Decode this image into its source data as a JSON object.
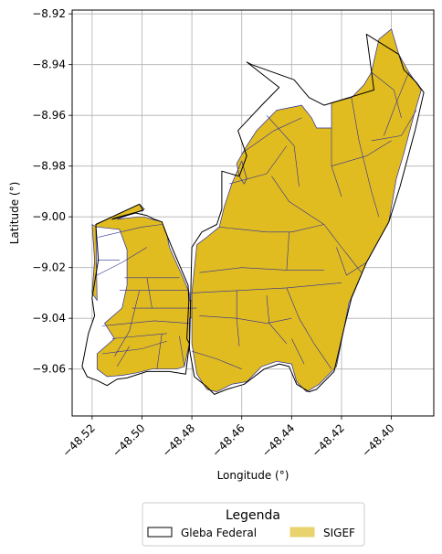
{
  "chart_data": {
    "type": "map",
    "xlabel": "Longitude (°)",
    "ylabel": "Latitude (°)",
    "xlim": [
      -48.528,
      -48.383
    ],
    "ylim": [
      -9.0785,
      -8.9185
    ],
    "x_ticks": [
      -48.52,
      -48.5,
      -48.48,
      -48.46,
      -48.44,
      -48.42,
      -48.4
    ],
    "x_tick_labels": [
      "−48.52",
      "−48.50",
      "−48.48",
      "−48.46",
      "−48.44",
      "−48.42",
      "−48.40"
    ],
    "y_ticks": [
      -8.92,
      -8.94,
      -8.96,
      -8.98,
      -9.0,
      -9.02,
      -9.04,
      -9.06
    ],
    "y_tick_labels": [
      "−8.92",
      "−8.94",
      "−8.96",
      "−8.98",
      "−9.00",
      "−9.02",
      "−9.04",
      "−9.06"
    ],
    "grid": true,
    "legend": {
      "title": "Legenda",
      "placement": "bottom-center",
      "items": [
        {
          "label": "Gleba Federal",
          "fill": "#ffffff",
          "edge": "#000000"
        },
        {
          "label": "SIGEF",
          "fill": "#e8d36c",
          "edge": "#e8d36c"
        }
      ]
    },
    "colors": {
      "gleba_edge": "#000000",
      "sigef_fill": "#e0bc20",
      "sigef_edge": "#2e2e9a",
      "grid": "#b0b0b0"
    },
    "gleba_federal": [
      [
        [
          -48.501,
          -8.995
        ],
        [
          -48.4995,
          -8.9975
        ],
        [
          -48.511,
          -9.0005
        ],
        [
          -48.512,
          -9.001
        ],
        [
          -48.5025,
          -8.9985
        ],
        [
          -48.498,
          -8.9995
        ],
        [
          -48.495,
          -9.001
        ],
        [
          -48.492,
          -9.002
        ],
        [
          -48.4905,
          -9.006
        ],
        [
          -48.488,
          -9.012
        ],
        [
          -48.4815,
          -9.027
        ],
        [
          -48.4812,
          -9.033
        ],
        [
          -48.482,
          -9.048
        ],
        [
          -48.481,
          -9.05
        ],
        [
          -48.4825,
          -9.062
        ],
        [
          -48.489,
          -9.061
        ],
        [
          -48.498,
          -9.061
        ],
        [
          -48.506,
          -9.0635
        ],
        [
          -48.51,
          -9.064
        ],
        [
          -48.514,
          -9.0665
        ],
        [
          -48.518,
          -9.0645
        ],
        [
          -48.522,
          -9.063
        ],
        [
          -48.524,
          -9.059
        ],
        [
          -48.5215,
          -9.046
        ],
        [
          -48.519,
          -9.039
        ],
        [
          -48.52,
          -9.032
        ],
        [
          -48.5175,
          -9.017
        ],
        [
          -48.5185,
          -9.003
        ],
        [
          -48.501,
          -8.995
        ]
      ],
      [
        [
          -48.48,
          -9.012
        ],
        [
          -48.476,
          -9.006
        ],
        [
          -48.47,
          -9.003
        ],
        [
          -48.468,
          -8.997
        ],
        [
          -48.468,
          -8.982
        ],
        [
          -48.461,
          -8.984
        ],
        [
          -48.458,
          -8.976
        ],
        [
          -48.4615,
          -8.966
        ],
        [
          -48.452,
          -8.956
        ],
        [
          -48.445,
          -8.949
        ],
        [
          -48.458,
          -8.939
        ],
        [
          -48.456,
          -8.94
        ],
        [
          -48.439,
          -8.946
        ],
        [
          -48.433,
          -8.953
        ],
        [
          -48.427,
          -8.956
        ],
        [
          -48.407,
          -8.95
        ],
        [
          -48.41,
          -8.928
        ],
        [
          -48.397,
          -8.936
        ],
        [
          -48.395,
          -8.942
        ],
        [
          -48.39,
          -8.947
        ],
        [
          -48.387,
          -8.951
        ],
        [
          -48.3905,
          -8.966
        ],
        [
          -48.3965,
          -8.988
        ],
        [
          -48.401,
          -9.002
        ],
        [
          -48.41,
          -9.018
        ],
        [
          -48.416,
          -9.032
        ],
        [
          -48.419,
          -9.044
        ],
        [
          -48.423,
          -9.061
        ],
        [
          -48.43,
          -9.068
        ],
        [
          -48.433,
          -9.069
        ],
        [
          -48.438,
          -9.066
        ],
        [
          -48.441,
          -9.059
        ],
        [
          -48.445,
          -9.058
        ],
        [
          -48.451,
          -9.06
        ],
        [
          -48.459,
          -9.066
        ],
        [
          -48.466,
          -9.068
        ],
        [
          -48.471,
          -9.07
        ],
        [
          -48.474,
          -9.067
        ],
        [
          -48.479,
          -9.063
        ],
        [
          -48.481,
          -9.052
        ],
        [
          -48.48,
          -9.012
        ]
      ]
    ],
    "sigef": [
      [
        [
          -48.501,
          -8.995
        ],
        [
          -48.499,
          -8.997
        ],
        [
          -48.51,
          -9.001
        ],
        [
          -48.502,
          -9.0
        ],
        [
          -48.499,
          -9.0
        ],
        [
          -48.496,
          -9.001
        ],
        [
          -48.492,
          -9.002
        ],
        [
          -48.49,
          -9.007
        ],
        [
          -48.489,
          -9.012
        ],
        [
          -48.484,
          -9.023
        ],
        [
          -48.481,
          -9.03
        ],
        [
          -48.481,
          -9.033
        ],
        [
          -48.477,
          -9.033
        ],
        [
          -48.477,
          -9.039
        ],
        [
          -48.481,
          -9.04
        ],
        [
          -48.481,
          -9.05
        ],
        [
          -48.483,
          -9.059
        ],
        [
          -48.486,
          -9.06
        ],
        [
          -48.496,
          -9.06
        ],
        [
          -48.502,
          -9.0615
        ],
        [
          -48.508,
          -9.0625
        ],
        [
          -48.514,
          -9.063
        ],
        [
          -48.518,
          -9.06
        ],
        [
          -48.518,
          -9.054
        ],
        [
          -48.511,
          -9.048
        ],
        [
          -48.515,
          -9.042
        ],
        [
          -48.508,
          -9.036
        ],
        [
          -48.506,
          -9.027
        ],
        [
          -48.506,
          -9.013
        ],
        [
          -48.509,
          -9.005
        ],
        [
          -48.518,
          -9.004
        ],
        [
          -48.52,
          -9.003
        ],
        [
          -48.519,
          -9.017
        ],
        [
          -48.52,
          -9.03
        ],
        [
          -48.518,
          -9.033
        ],
        [
          -48.5185,
          -9.003
        ],
        [
          -48.501,
          -8.995
        ]
      ],
      [
        [
          -48.478,
          -9.011
        ],
        [
          -48.474,
          -9.008
        ],
        [
          -48.469,
          -9.004
        ],
        [
          -48.467,
          -8.996
        ],
        [
          -48.464,
          -8.987
        ],
        [
          -48.46,
          -8.978
        ],
        [
          -48.458,
          -8.985
        ],
        [
          -48.459,
          -8.987
        ],
        [
          -48.461,
          -8.984
        ],
        [
          -48.462,
          -8.979
        ],
        [
          -48.458,
          -8.972
        ],
        [
          -48.454,
          -8.966
        ],
        [
          -48.446,
          -8.958
        ],
        [
          -48.436,
          -8.956
        ],
        [
          -48.432,
          -8.961
        ],
        [
          -48.43,
          -8.965
        ],
        [
          -48.424,
          -8.965
        ],
        [
          -48.424,
          -8.955
        ],
        [
          -48.416,
          -8.953
        ],
        [
          -48.411,
          -8.948
        ],
        [
          -48.408,
          -8.943
        ],
        [
          -48.405,
          -8.93
        ],
        [
          -48.4,
          -8.926
        ],
        [
          -48.397,
          -8.936
        ],
        [
          -48.393,
          -8.943
        ],
        [
          -48.388,
          -8.95
        ],
        [
          -48.391,
          -8.96
        ],
        [
          -48.395,
          -8.975
        ],
        [
          -48.398,
          -8.985
        ],
        [
          -48.401,
          -9.002
        ],
        [
          -48.41,
          -9.018
        ],
        [
          -48.417,
          -9.034
        ],
        [
          -48.419,
          -9.044
        ],
        [
          -48.422,
          -9.059
        ],
        [
          -48.429,
          -9.066
        ],
        [
          -48.434,
          -9.069
        ],
        [
          -48.438,
          -9.065
        ],
        [
          -48.44,
          -9.058
        ],
        [
          -48.446,
          -9.057
        ],
        [
          -48.452,
          -9.059
        ],
        [
          -48.458,
          -9.065
        ],
        [
          -48.464,
          -9.066
        ],
        [
          -48.47,
          -9.069
        ],
        [
          -48.474,
          -9.068
        ],
        [
          -48.478,
          -9.062
        ],
        [
          -48.48,
          -9.05
        ],
        [
          -48.48,
          -9.03
        ],
        [
          -48.478,
          -9.011
        ]
      ]
    ]
  }
}
